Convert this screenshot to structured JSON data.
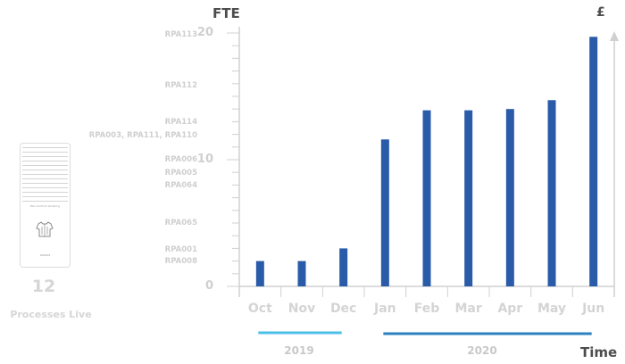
{
  "chart_data": {
    "type": "bar",
    "categories": [
      "Oct",
      "Nov",
      "Dec",
      "Jan",
      "Feb",
      "Mar",
      "Apr",
      "May",
      "Jun"
    ],
    "values": [
      2,
      2,
      3,
      11.6,
      13.9,
      13.9,
      14,
      14.7,
      19.7
    ],
    "ylim": [
      0,
      20
    ],
    "yticks": [
      "0",
      "10",
      "20"
    ],
    "ylabel": "FTE",
    "xlabel": "Time",
    "currency_symbol": "£",
    "bar_color": "#2a5ba8",
    "grid": false,
    "process_labels": [
      {
        "label": "RPA113",
        "y": 19.8
      },
      {
        "label": "RPA112",
        "y": 15.8
      },
      {
        "label": "RPA114",
        "y": 12.9
      },
      {
        "label": "RPA003, RPA111, RPA110",
        "y": 11.8
      },
      {
        "label": "RPA006",
        "y": 9.9
      },
      {
        "label": "RPA005",
        "y": 8.9
      },
      {
        "label": "RPA064",
        "y": 7.9
      },
      {
        "label": "RPA065",
        "y": 4.9
      },
      {
        "label": "RPA001",
        "y": 2.8
      },
      {
        "label": "RPA008",
        "y": 1.9
      }
    ],
    "years": [
      {
        "label": "2019",
        "color": "#4bbfe8"
      },
      {
        "label": "2020",
        "color": "#2e7fbf"
      }
    ]
  },
  "summary": {
    "count": "12",
    "caption": "Processes Live",
    "document_title": "Mini Uniform Ordering",
    "document_footer": "RPA008"
  }
}
